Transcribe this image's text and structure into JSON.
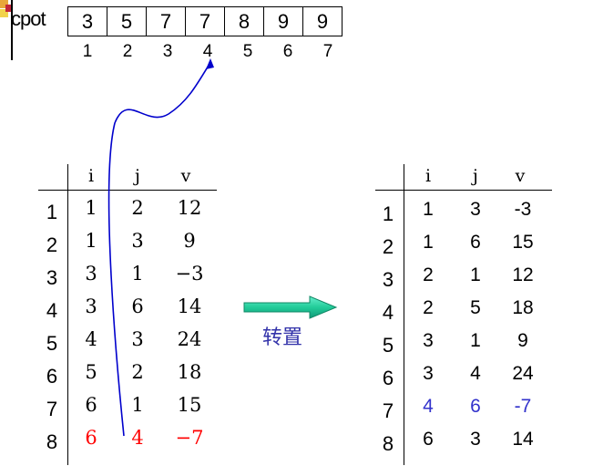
{
  "cpot": {
    "label": "cpot",
    "values": [
      "3",
      "5",
      "7",
      "7",
      "8",
      "9",
      "9"
    ],
    "indices": [
      "1",
      "2",
      "3",
      "4",
      "5",
      "6",
      "7"
    ]
  },
  "left_table": {
    "headers": [
      "i",
      "j",
      "v"
    ],
    "row_numbers": [
      "1",
      "2",
      "3",
      "4",
      "5",
      "6",
      "7",
      "8"
    ],
    "rows": [
      [
        "1",
        "2",
        "12"
      ],
      [
        "1",
        "3",
        "9"
      ],
      [
        "3",
        "1",
        "−3"
      ],
      [
        "3",
        "6",
        "14"
      ],
      [
        "4",
        "3",
        "24"
      ],
      [
        "5",
        "2",
        "18"
      ],
      [
        "6",
        "1",
        "15"
      ],
      [
        "6",
        "4",
        "−7"
      ]
    ],
    "highlight_color": "#ff0000"
  },
  "right_table": {
    "headers": [
      "i",
      "j",
      "v"
    ],
    "row_numbers": [
      "1",
      "2",
      "3",
      "4",
      "5",
      "6",
      "7",
      "8"
    ],
    "rows": [
      [
        "1",
        "3",
        "-3"
      ],
      [
        "1",
        "6",
        "15"
      ],
      [
        "2",
        "1",
        "12"
      ],
      [
        "2",
        "5",
        "18"
      ],
      [
        "3",
        "1",
        "9"
      ],
      [
        "3",
        "4",
        "24"
      ],
      [
        "4",
        "6",
        "-7"
      ],
      [
        "6",
        "3",
        "14"
      ]
    ],
    "highlight_color": "#3333cc"
  },
  "arrow": {
    "label": "转置",
    "color": "#33ccaa"
  },
  "curve_color": "#0000cc"
}
